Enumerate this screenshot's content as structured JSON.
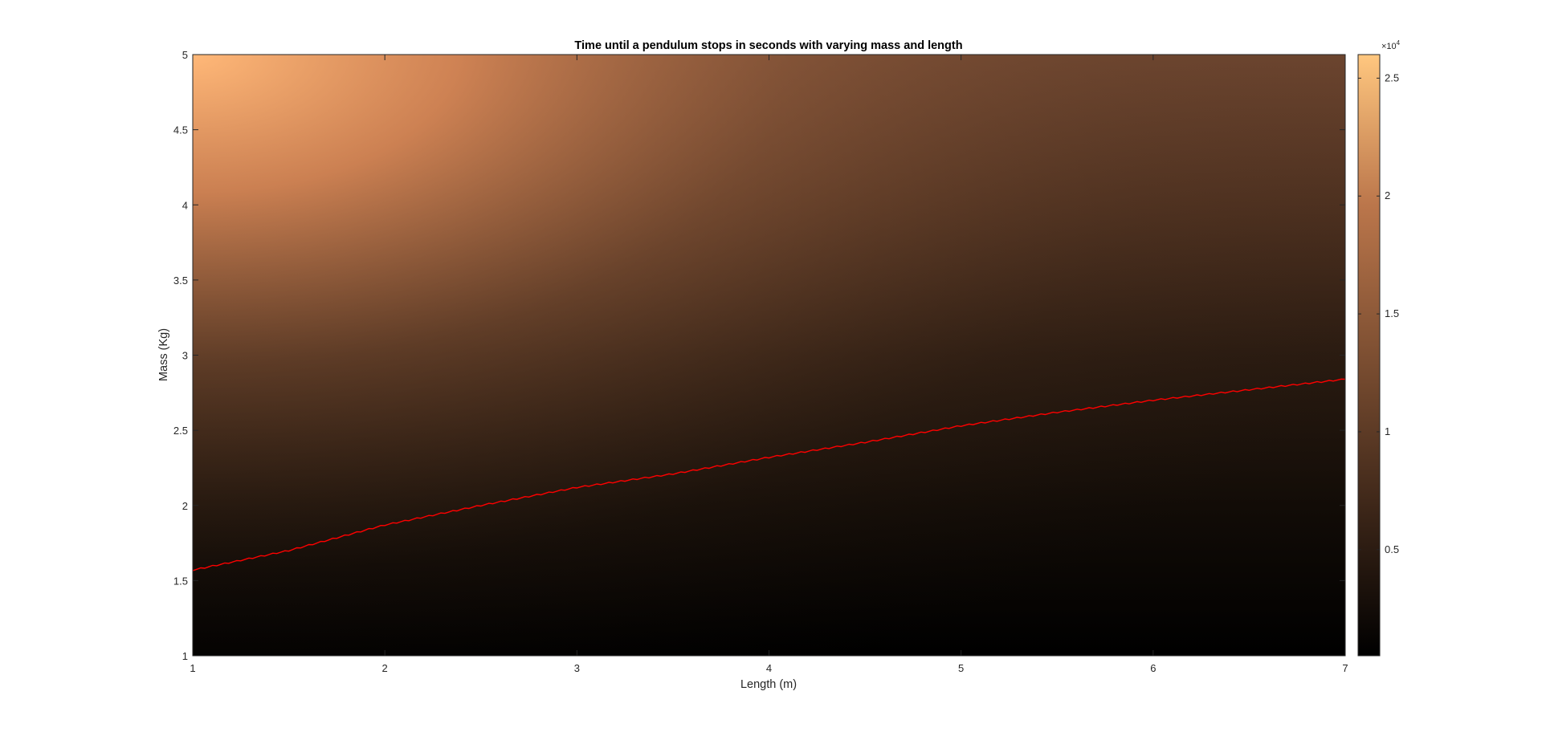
{
  "chart_data": {
    "type": "heatmap",
    "title": "Time until a pendulum stops in seconds with varying mass and length",
    "xlabel": "Length (m)",
    "ylabel": "Mass (Kg)",
    "xlim": [
      1,
      7
    ],
    "ylim": [
      1,
      5
    ],
    "x_ticks": [
      "1",
      "2",
      "3",
      "4",
      "5",
      "6",
      "7"
    ],
    "y_ticks": [
      "1",
      "1.5",
      "2",
      "2.5",
      "3",
      "3.5",
      "4",
      "4.5",
      "5"
    ],
    "colormap": "copper",
    "colorbar": {
      "range": [
        500,
        26000
      ],
      "ticks": [
        "0.5",
        "1",
        "1.5",
        "2",
        "2.5"
      ],
      "tick_values": [
        0.5,
        1,
        1.5,
        2,
        2.5
      ],
      "exponent_prefix": "×10",
      "exponent": "4"
    },
    "surface_values": {
      "note_axis": "value in seconds at (length, mass)",
      "corners": [
        {
          "length": 1,
          "mass": 5,
          "value": 26000
        },
        {
          "length": 7,
          "mass": 5,
          "value": 7500
        },
        {
          "length": 1,
          "mass": 1,
          "value": 800
        },
        {
          "length": 7,
          "mass": 1,
          "value": 500
        }
      ]
    },
    "contour_series": {
      "name": "",
      "color": "#ff0000",
      "points": [
        {
          "length": 1.0,
          "mass": 1.57
        },
        {
          "length": 1.5,
          "mass": 1.7
        },
        {
          "length": 2.0,
          "mass": 1.87
        },
        {
          "length": 2.5,
          "mass": 2.0
        },
        {
          "length": 3.0,
          "mass": 2.12
        },
        {
          "length": 3.5,
          "mass": 2.21
        },
        {
          "length": 4.0,
          "mass": 2.32
        },
        {
          "length": 4.5,
          "mass": 2.42
        },
        {
          "length": 5.0,
          "mass": 2.53
        },
        {
          "length": 5.5,
          "mass": 2.62
        },
        {
          "length": 6.0,
          "mass": 2.7
        },
        {
          "length": 6.5,
          "mass": 2.77
        },
        {
          "length": 7.0,
          "mass": 2.84
        }
      ]
    }
  }
}
